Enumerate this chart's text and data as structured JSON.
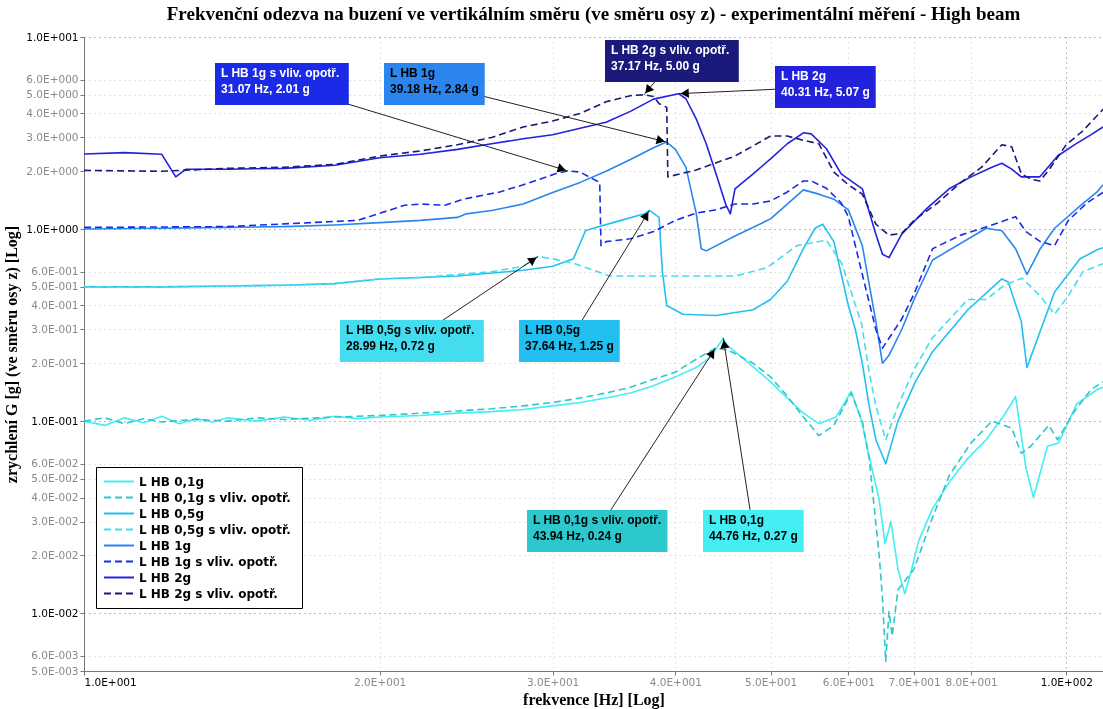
{
  "chart_data": {
    "type": "line",
    "title": "Frekvenční odezva na buzení ve vertikálním směru (ve směru osy z) - experimentální měření - High beam",
    "xlabel": "frekvence [Hz] [Log]",
    "ylabel": "zrychlení G [g] (ve směru osy z) [Log]",
    "log": "xy",
    "grid": true,
    "legend": "bottom left",
    "xlim": [
      10,
      109
    ],
    "ylim": [
      0.005,
      10
    ],
    "xticks": [
      {
        "value": 10,
        "label": "1.0E+001"
      },
      {
        "value": 20,
        "label": "2.0E+001"
      },
      {
        "value": 30,
        "label": "3.0E+001"
      },
      {
        "value": 40,
        "label": "4.0E+001"
      },
      {
        "value": 50,
        "label": "5.0E+001"
      },
      {
        "value": 60,
        "label": "6.0E+001"
      },
      {
        "value": 70,
        "label": "7.0E+001"
      },
      {
        "value": 80,
        "label": "8.0E+001"
      },
      {
        "value": 100,
        "label": "1.0E+002"
      }
    ],
    "yticks": [
      {
        "value": 0.005,
        "label": "5.0E-003"
      },
      {
        "value": 0.006,
        "label": "6.0E-003"
      },
      {
        "value": 0.01,
        "label": "1.0E-002"
      },
      {
        "value": 0.02,
        "label": "2.0E-002"
      },
      {
        "value": 0.03,
        "label": "3.0E-002"
      },
      {
        "value": 0.04,
        "label": "4.0E-002"
      },
      {
        "value": 0.05,
        "label": "5.0E-002"
      },
      {
        "value": 0.06,
        "label": "6.0E-002"
      },
      {
        "value": 0.1,
        "label": "1.0E-001"
      },
      {
        "value": 0.2,
        "label": "2.0E-001"
      },
      {
        "value": 0.3,
        "label": "3.0E-001"
      },
      {
        "value": 0.4,
        "label": "4.0E-001"
      },
      {
        "value": 0.5,
        "label": "5.0E-001"
      },
      {
        "value": 0.6,
        "label": "6.0E-001"
      },
      {
        "value": 1,
        "label": "1.0E+000"
      },
      {
        "value": 2,
        "label": "2.0E+000"
      },
      {
        "value": 3,
        "label": "3.0E+000"
      },
      {
        "value": 4,
        "label": "4.0E+000"
      },
      {
        "value": 5,
        "label": "5.0E+000"
      },
      {
        "value": 6,
        "label": "6.0E+000"
      },
      {
        "value": 10,
        "label": "1.0E+001"
      }
    ],
    "series": [
      {
        "name": "L HB 0,1g",
        "color": "#44eef2",
        "line_style": "solid",
        "x": [
          10,
          10.5,
          11,
          11.5,
          12,
          12.5,
          13,
          13.5,
          14,
          15,
          16,
          17,
          18,
          19,
          20,
          22,
          24,
          26,
          28,
          30,
          32,
          34,
          36,
          38,
          40,
          42,
          43.4,
          44.76,
          45.1,
          46,
          48.1,
          50,
          52.3,
          54,
          56,
          58.3,
          60.4,
          61.9,
          62.9,
          64.5,
          65.4,
          66.3,
          67.4,
          68.5,
          69.6,
          70.8,
          73.1,
          76,
          79.4,
          82.9,
          86.5,
          88.8,
          91,
          92.6,
          95.7,
          98.2,
          102.5,
          107.5,
          109
        ],
        "values": [
          0.1,
          0.095,
          0.104,
          0.098,
          0.106,
          0.097,
          0.103,
          0.099,
          0.104,
          0.1,
          0.105,
          0.101,
          0.106,
          0.103,
          0.105,
          0.107,
          0.11,
          0.112,
          0.115,
          0.12,
          0.125,
          0.132,
          0.14,
          0.153,
          0.17,
          0.19,
          0.215,
          0.27,
          0.25,
          0.23,
          0.19,
          0.16,
          0.128,
          0.11,
          0.097,
          0.105,
          0.143,
          0.1,
          0.068,
          0.039,
          0.023,
          0.03,
          0.017,
          0.0126,
          0.017,
          0.024,
          0.035,
          0.048,
          0.064,
          0.08,
          0.108,
          0.134,
          0.057,
          0.04,
          0.074,
          0.077,
          0.123,
          0.146,
          0.15
        ]
      },
      {
        "name": "L HB 0,1g s vliv. opotř.",
        "color": "#2cc8cc",
        "line_style": "dashed",
        "x": [
          10,
          10.5,
          11,
          11.5,
          12,
          13,
          14,
          15,
          16,
          18,
          20,
          22,
          24,
          26,
          28,
          30,
          32,
          34,
          36,
          38,
          40,
          42,
          43.94,
          45.1,
          46,
          48,
          50,
          52,
          54,
          56,
          58,
          60.4,
          62,
          63,
          64.5,
          65,
          65.5,
          66,
          66.5,
          67.4,
          70,
          73,
          76,
          80,
          84,
          88,
          90,
          92,
          96,
          98,
          102,
          106,
          109
        ],
        "values": [
          0.1,
          0.104,
          0.097,
          0.103,
          0.099,
          0.102,
          0.1,
          0.104,
          0.102,
          0.105,
          0.107,
          0.11,
          0.113,
          0.116,
          0.12,
          0.125,
          0.132,
          0.14,
          0.15,
          0.165,
          0.18,
          0.21,
          0.24,
          0.235,
          0.225,
          0.2,
          0.17,
          0.135,
          0.105,
          0.084,
          0.095,
          0.14,
          0.1,
          0.064,
          0.02,
          0.012,
          0.0056,
          0.0102,
          0.0076,
          0.0132,
          0.017,
          0.031,
          0.052,
          0.077,
          0.1,
          0.092,
          0.068,
          0.074,
          0.095,
          0.08,
          0.113,
          0.146,
          0.16
        ]
      },
      {
        "name": "L HB 0,5g",
        "color": "#22c0f0",
        "line_style": "solid",
        "x": [
          10,
          12,
          14,
          16,
          18,
          20,
          22,
          24,
          26,
          28,
          30,
          31.5,
          32.4,
          33,
          35,
          37.2,
          37.64,
          38.5,
          38.8,
          39.2,
          40.7,
          44,
          48,
          50,
          52,
          54,
          55.5,
          56.5,
          58,
          60,
          61,
          62,
          63,
          64,
          65.5,
          67.4,
          70.2,
          73.1,
          79.4,
          86,
          87.3,
          90,
          91.2,
          97.3,
          103.3,
          107.5,
          109
        ],
        "values": [
          0.5,
          0.5,
          0.505,
          0.51,
          0.52,
          0.55,
          0.56,
          0.57,
          0.59,
          0.61,
          0.64,
          0.7,
          0.98,
          1.01,
          1.1,
          1.2,
          1.25,
          1.15,
          0.6,
          0.4,
          0.36,
          0.355,
          0.38,
          0.43,
          0.535,
          0.79,
          1.01,
          1.06,
          0.86,
          0.4,
          0.3,
          0.2,
          0.12,
          0.08,
          0.06,
          0.1,
          0.16,
          0.23,
          0.38,
          0.55,
          0.53,
          0.33,
          0.19,
          0.47,
          0.7,
          0.78,
          0.8
        ]
      },
      {
        "name": "L HB 0,5g  s vliv. opotř.",
        "color": "#44ddf0",
        "line_style": "dashed",
        "x": [
          10,
          12,
          14,
          16,
          18,
          20,
          22,
          24,
          26,
          28,
          28.99,
          30,
          31.6,
          34.3,
          37.2,
          40.7,
          46.1,
          49.6,
          53.2,
          57,
          59.1,
          61.9,
          63,
          64,
          65.5,
          67.4,
          70,
          73,
          79.4,
          82.9,
          86.5,
          90.2,
          94,
          97.3,
          100.5,
          104,
          109
        ],
        "values": [
          0.5,
          0.5,
          0.505,
          0.51,
          0.52,
          0.55,
          0.56,
          0.58,
          0.6,
          0.64,
          0.72,
          0.7,
          0.66,
          0.57,
          0.57,
          0.57,
          0.57,
          0.63,
          0.82,
          0.875,
          0.66,
          0.32,
          0.18,
          0.12,
          0.08,
          0.12,
          0.186,
          0.27,
          0.43,
          0.43,
          0.51,
          0.555,
          0.45,
          0.36,
          0.45,
          0.6,
          0.66
        ]
      },
      {
        "name": "L HB 1g",
        "color": "#2a86ee",
        "line_style": "solid",
        "x": [
          10,
          12,
          14,
          16,
          18,
          20,
          22,
          24,
          24.5,
          26,
          28,
          30,
          32,
          34,
          36,
          38,
          39.18,
          40,
          41,
          42,
          42.5,
          43,
          46,
          50,
          54,
          56,
          58,
          60,
          62,
          64,
          65,
          66,
          68,
          70,
          73.1,
          82.9,
          86,
          88.8,
          91.2,
          94.1,
          97.3,
          103.3,
          107.5,
          109
        ],
        "values": [
          1.0,
          1.01,
          1.02,
          1.03,
          1.05,
          1.08,
          1.11,
          1.15,
          1.2,
          1.25,
          1.35,
          1.55,
          1.75,
          2.0,
          2.3,
          2.65,
          2.84,
          2.6,
          2.1,
          1.21,
          0.79,
          0.77,
          0.92,
          1.13,
          1.6,
          1.52,
          1.43,
          1.26,
          0.82,
          0.33,
          0.2,
          0.22,
          0.3,
          0.43,
          0.69,
          1.01,
          0.98,
          0.79,
          0.58,
          0.79,
          1.01,
          1.32,
          1.56,
          1.7
        ]
      },
      {
        "name": "L HB 1g  s vliv. opotř.",
        "color": "#1a2ae6",
        "line_style": "dashed",
        "x": [
          10,
          14,
          19,
          21.2,
          22,
          23.3,
          24.3,
          26.5,
          28,
          30.2,
          31.07,
          32,
          33,
          33.5,
          33.6,
          34,
          36,
          38,
          40,
          42,
          44,
          46,
          48,
          50,
          52,
          54,
          55,
          57,
          59,
          60,
          62,
          64,
          65,
          66,
          68,
          70,
          73.1,
          78.1,
          83.6,
          88.8,
          91,
          94.1,
          97.3,
          100.5,
          105,
          109
        ],
        "values": [
          1.02,
          1.03,
          1.11,
          1.33,
          1.35,
          1.33,
          1.43,
          1.56,
          1.7,
          1.94,
          2.01,
          1.98,
          1.82,
          1.75,
          0.82,
          0.86,
          0.89,
          0.97,
          1.11,
          1.21,
          1.26,
          1.35,
          1.35,
          1.4,
          1.56,
          1.78,
          1.78,
          1.63,
          1.37,
          1.16,
          0.58,
          0.3,
          0.24,
          0.27,
          0.34,
          0.46,
          0.79,
          0.93,
          1.04,
          1.16,
          0.97,
          0.86,
          0.82,
          1.11,
          1.37,
          1.55
        ]
      },
      {
        "name": "L HB 2g",
        "color": "#2222dd",
        "line_style": "solid",
        "x": [
          10,
          11,
          12,
          12.4,
          12.7,
          14,
          16,
          18,
          20,
          22,
          24,
          26,
          28,
          30,
          32,
          34,
          36,
          38,
          40.31,
          41,
          42,
          43,
          44,
          45,
          45.5,
          46,
          48,
          50,
          52,
          54,
          55,
          57,
          59,
          62,
          64,
          65,
          66,
          68,
          72,
          76,
          80,
          84,
          86,
          88,
          90,
          94,
          98,
          102,
          106,
          109
        ],
        "values": [
          2.46,
          2.5,
          2.45,
          1.87,
          2.05,
          2.05,
          2.07,
          2.15,
          2.35,
          2.45,
          2.6,
          2.78,
          2.95,
          3.1,
          3.35,
          3.6,
          4.1,
          4.75,
          5.07,
          4.77,
          3.75,
          2.78,
          1.94,
          1.35,
          1.2,
          1.62,
          1.94,
          2.32,
          2.78,
          3.17,
          3.13,
          2.62,
          1.94,
          1.62,
          0.94,
          0.74,
          0.71,
          0.94,
          1.27,
          1.62,
          1.87,
          2.1,
          2.2,
          2.05,
          1.87,
          1.87,
          2.4,
          2.75,
          3.1,
          3.4
        ]
      },
      {
        "name": "L HB 2g  s vliv. opotř.",
        "color": "#1a1a7a",
        "line_style": "dashed",
        "x": [
          10,
          12,
          14,
          16,
          18,
          20,
          22,
          24,
          26,
          28,
          30,
          32,
          34,
          36,
          37.17,
          38,
          38.5,
          39.2,
          39.3,
          42,
          46,
          50,
          52,
          54,
          56,
          58,
          60,
          62,
          64,
          66,
          68,
          70,
          74,
          78,
          82,
          86,
          88,
          90,
          92,
          94,
          96,
          100,
          104,
          109
        ],
        "values": [
          2.02,
          2.0,
          2.07,
          2.1,
          2.17,
          2.4,
          2.55,
          2.75,
          3.0,
          3.4,
          3.65,
          4.0,
          4.6,
          4.95,
          5.0,
          4.9,
          4.5,
          4.3,
          1.87,
          2.03,
          2.4,
          3.05,
          3.05,
          2.9,
          2.78,
          1.98,
          1.7,
          1.52,
          1.06,
          0.93,
          0.95,
          1.11,
          1.37,
          1.74,
          2.1,
          2.75,
          2.68,
          1.94,
          1.82,
          1.78,
          2.03,
          2.75,
          3.25,
          4.2
        ]
      }
    ],
    "annotations": [
      {
        "text": "L HB 1g  s vliv. opotř.\n31.07 Hz, 2.01 g",
        "x": 31.07,
        "y": 2.01
      },
      {
        "text": "L HB 1g\n39.18 Hz, 2.84 g",
        "x": 39.18,
        "y": 2.84
      },
      {
        "text": "L HB 2g  s vliv. opotř.\n37.17 Hz, 5.00 g",
        "x": 37.17,
        "y": 5.0
      },
      {
        "text": "L HB 2g\n40.31 Hz, 5.07 g",
        "x": 40.31,
        "y": 5.07
      },
      {
        "text": "L HB 0,5g  s vliv. opotř.\n28.99 Hz, 0.72 g",
        "x": 28.99,
        "y": 0.72
      },
      {
        "text": "L HB 0,5g\n37.64 Hz, 1.25 g",
        "x": 37.64,
        "y": 1.25
      },
      {
        "text": "L HB 0,1g s vliv. opotř.\n43.94 Hz, 0.24 g",
        "x": 43.94,
        "y": 0.24
      },
      {
        "text": "L HB 0,1g\n44.76 Hz, 0.27 g",
        "x": 44.76,
        "y": 0.27
      }
    ]
  }
}
